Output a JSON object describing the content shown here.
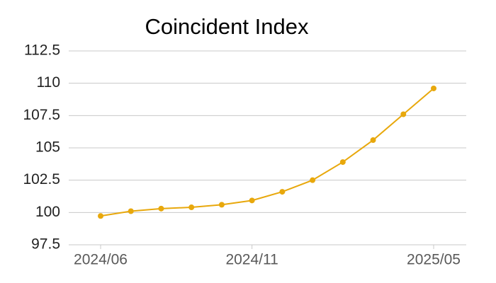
{
  "chart_data": {
    "type": "line",
    "title": "Coincident Index",
    "categories": [
      "2024/06",
      null,
      null,
      null,
      null,
      "2024/11",
      null,
      null,
      null,
      null,
      null,
      "2025/05"
    ],
    "series": [
      {
        "name": "Coincident Index",
        "color": "#e8a80c",
        "values": [
          99.73,
          100.1,
          100.3,
          100.4,
          100.6,
          100.93,
          101.6,
          102.5,
          103.9,
          105.6,
          107.6,
          109.6
        ]
      }
    ],
    "ylim": [
      97.5,
      112.5
    ],
    "yticks": [
      97.5,
      100,
      102.5,
      105,
      107.5,
      110,
      112.5
    ],
    "grid": true
  }
}
